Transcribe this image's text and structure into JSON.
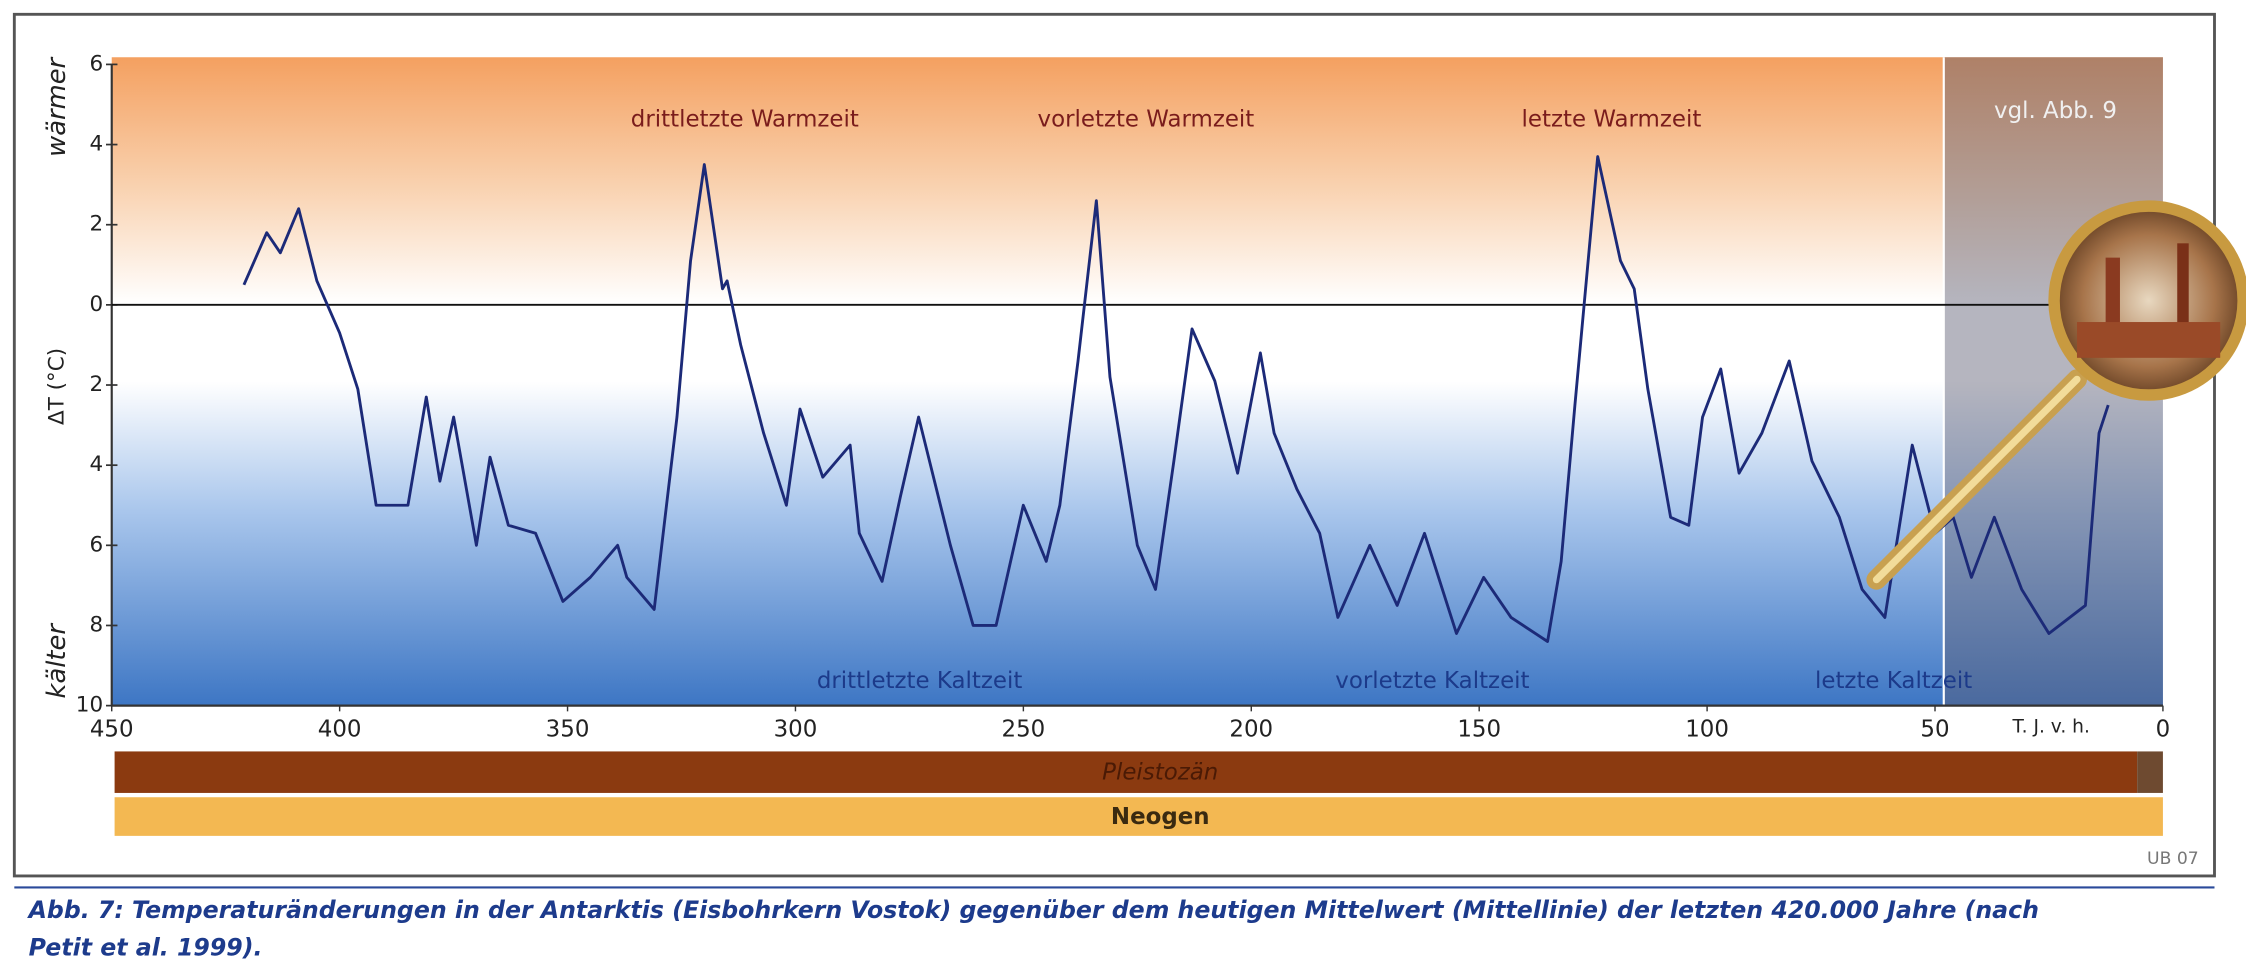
{
  "chart_data": {
    "type": "line",
    "x": [
      421,
      416,
      413,
      409,
      405,
      400,
      396,
      392,
      385,
      381,
      378,
      375,
      370,
      367,
      363,
      357,
      351,
      345,
      339,
      337,
      331,
      326,
      323,
      320,
      316,
      315,
      312,
      307,
      302,
      299,
      294,
      288,
      286,
      281,
      277,
      273,
      266,
      261,
      256,
      250,
      245,
      242,
      238,
      234,
      231,
      225,
      221,
      217,
      213,
      208,
      203,
      198,
      195,
      190,
      185,
      181,
      174,
      168,
      162,
      155,
      149,
      143,
      135,
      132,
      129,
      124,
      119,
      116,
      113,
      108,
      104,
      101,
      97,
      93,
      88,
      82,
      77,
      71,
      66,
      61,
      55,
      50,
      46,
      42,
      37,
      31,
      25,
      17,
      14,
      12
    ],
    "values": [
      0.5,
      1.8,
      1.3,
      2.4,
      0.6,
      -0.7,
      -2.1,
      -5,
      -5,
      -2.3,
      -4.4,
      -2.8,
      -6,
      -3.8,
      -5.5,
      -5.7,
      -7.4,
      -6.8,
      -6,
      -6.8,
      -7.6,
      -2.8,
      1.1,
      3.5,
      0.4,
      0.6,
      -1,
      -3.2,
      -5,
      -2.6,
      -4.3,
      -3.5,
      -5.7,
      -6.9,
      -4.8,
      -2.8,
      -6,
      -8,
      -8,
      -5,
      -6.4,
      -5,
      -1.4,
      2.6,
      -1.8,
      -6,
      -7.1,
      -3.9,
      -0.6,
      -1.9,
      -4.2,
      -1.2,
      -3.2,
      -4.6,
      -5.7,
      -7.8,
      -6,
      -7.5,
      -5.7,
      -8.2,
      -6.8,
      -7.8,
      -8.4,
      -6.4,
      -2.5,
      3.7,
      1.1,
      0.4,
      -2.1,
      -5.3,
      -5.5,
      -2.8,
      -1.6,
      -4.2,
      -3.2,
      -1.4,
      -3.9,
      -5.3,
      -7.1,
      -7.8,
      -3.5,
      -5.7,
      -5.3,
      -6.8,
      -5.3,
      -7.1,
      -8.2,
      -7.5,
      -3.2,
      -2.5
    ],
    "color": "#1c2a78",
    "xlim": [
      450,
      0
    ],
    "xticks": [
      450,
      400,
      350,
      300,
      250,
      200,
      150,
      100,
      50,
      0
    ],
    "ylim": [
      -10,
      6
    ],
    "yticks": [
      6,
      4,
      2,
      0,
      {
        "value": -2,
        "label": "2"
      },
      {
        "value": -4,
        "label": "4"
      },
      {
        "value": -6,
        "label": "6"
      },
      {
        "value": -8,
        "label": "8"
      },
      {
        "value": -10,
        "label": "10"
      }
    ],
    "zero_line": true,
    "ylabel": "ΔT (°C)",
    "ylabel_top": "wärmer",
    "ylabel_bottom": "kälter",
    "xlabel": "T. J. v. h.",
    "annotations": [
      {
        "text": "drittletzte Warmzeit"
      },
      {
        "text": "vorletzte Warmzeit"
      },
      {
        "text": "letzte Warmzeit"
      },
      {
        "text": "drittletzte Kaltzeit"
      },
      {
        "text": "vorletzte Kaltzeit"
      },
      {
        "text": "letzte Kaltzeit"
      },
      {
        "text": "vgl. Abb. 9"
      }
    ],
    "periods": [
      "Pleistozän",
      "Neogen"
    ],
    "code": "UB 07",
    "caption": [
      "Abb. 7: Temperaturänderungen in der Antarktis (Eisbohrkern Vostok) gegenüber dem heutigen Mittelwert (Mittellinie) der letzten 420.000 Jahre (nach",
      "Petit et al. 1999)."
    ]
  }
}
